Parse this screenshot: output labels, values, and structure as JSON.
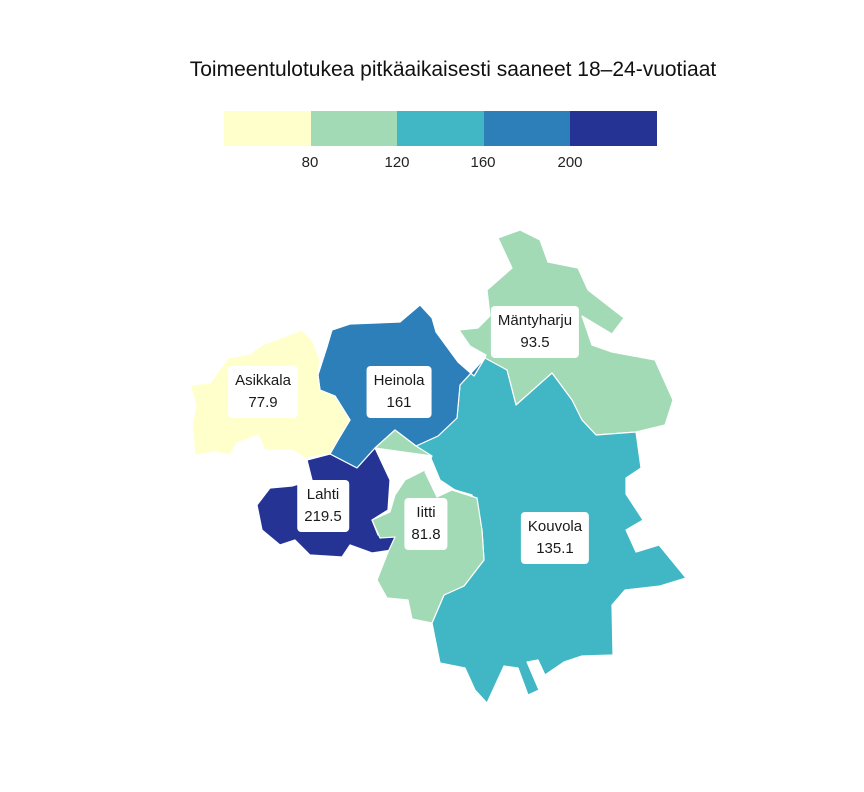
{
  "title": "Toimeentulotukea pitkäaikaisesti saaneet 18–24-vuotiaat",
  "legend": {
    "colors": [
      "#ffffcc",
      "#a1dab4",
      "#41b6c4",
      "#2c7fb8",
      "#253494"
    ],
    "ticks": [
      "80",
      "120",
      "160",
      "200"
    ]
  },
  "regions": {
    "asikkala": {
      "name": "Asikkala",
      "value": "77.9",
      "color": "#ffffcc"
    },
    "heinola": {
      "name": "Heinola",
      "value": "161",
      "color": "#2c7fb8"
    },
    "mantyharju": {
      "name": "Mäntyharju",
      "value": "93.5",
      "color": "#a1dab4"
    },
    "lahti": {
      "name": "Lahti",
      "value": "219.5",
      "color": "#253494"
    },
    "iitti": {
      "name": "Iitti",
      "value": "81.8",
      "color": "#a1dab4"
    },
    "kouvola": {
      "name": "Kouvola",
      "value": "135.1",
      "color": "#41b6c4"
    }
  }
}
